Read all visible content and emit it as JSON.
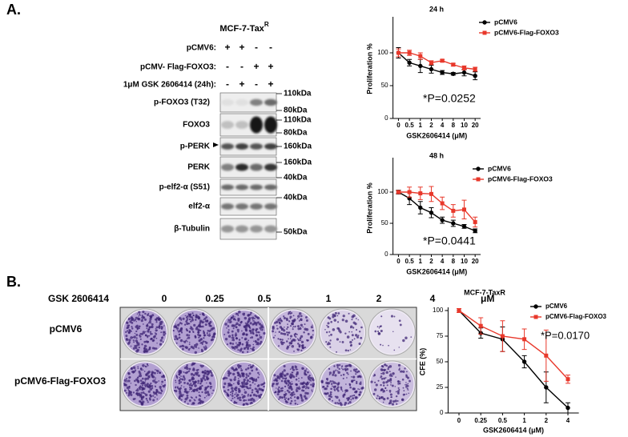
{
  "panel_a": {
    "label": "A.",
    "cell_line": "MCF-7-Tax",
    "cell_line_sup": "R",
    "treatments": [
      {
        "label": "pCMV6:",
        "marks": [
          "+",
          "+",
          "-",
          "-"
        ]
      },
      {
        "label": "pCMV- Flag-FOXO3:",
        "marks": [
          "-",
          "-",
          "+",
          "+"
        ]
      },
      {
        "label": "1μM GSK 2606414 (24h):",
        "marks": [
          "-",
          "+",
          "-",
          "+"
        ]
      }
    ],
    "blots": [
      "p-FOXO3 (T32)",
      "FOXO3",
      "p-PERK",
      "PERK",
      "p-elf2-α (S51)",
      "elf2-α",
      "β-Tubulin"
    ],
    "markers": [
      "110kDa",
      "80kDa",
      "110kDa",
      "80kDa",
      "160kDa",
      "160kDa",
      "40kDa",
      "40kDa",
      "50kDa"
    ]
  },
  "panel_b": {
    "label": "B.",
    "drug": "GSK 2606414",
    "doses": [
      "0",
      "0.25",
      "0.5",
      "1",
      "2",
      "4"
    ],
    "unit": "μM",
    "rows": [
      "pCMV6",
      "pCMV6-Flag-FOXO3"
    ]
  },
  "chart_data": [
    {
      "type": "line",
      "title": "24 h",
      "xlabel": "GSK2606414 (μM)",
      "ylabel": "Proliferation %",
      "annotation": "*P=0.0252",
      "categories": [
        "0",
        "0.5",
        "1",
        "2",
        "4",
        "8",
        "10",
        "20"
      ],
      "series": [
        {
          "name": "pCMV6",
          "color": "#000000",
          "marker": "circle",
          "values": [
            100,
            85,
            80,
            75,
            70,
            68,
            70,
            65
          ],
          "errors": [
            8,
            5,
            10,
            6,
            3,
            2,
            5,
            6
          ]
        },
        {
          "name": "pCMV6-Flag-FOXO3",
          "color": "#e8382b",
          "marker": "square",
          "values": [
            100,
            100,
            95,
            85,
            88,
            82,
            77,
            75
          ],
          "errors": [
            6,
            4,
            5,
            3,
            2,
            2,
            3,
            3
          ]
        }
      ],
      "ylim": [
        0,
        150
      ],
      "yticks": [
        0,
        50,
        100
      ],
      "legend": "upper right"
    },
    {
      "type": "line",
      "title": "48 h",
      "xlabel": "GSK2606414 (μM)",
      "ylabel": "Proliferation %",
      "annotation": "*P=0.0441",
      "categories": [
        "0",
        "0.5",
        "1",
        "2",
        "4",
        "8",
        "10",
        "20"
      ],
      "series": [
        {
          "name": "pCMV6",
          "color": "#000000",
          "marker": "circle",
          "values": [
            100,
            90,
            75,
            67,
            55,
            50,
            45,
            38
          ],
          "errors": [
            3,
            10,
            10,
            8,
            5,
            5,
            3,
            3
          ]
        },
        {
          "name": "pCMV6-Flag-FOXO3",
          "color": "#e8382b",
          "marker": "square",
          "values": [
            100,
            100,
            98,
            97,
            82,
            70,
            72,
            52
          ],
          "errors": [
            2,
            8,
            10,
            12,
            10,
            10,
            15,
            8
          ]
        }
      ],
      "ylim": [
        0,
        150
      ],
      "yticks": [
        0,
        50,
        100
      ],
      "legend": "upper right"
    },
    {
      "type": "line",
      "title": "MCF-7-TaxR",
      "xlabel": "GSK2606414 (μM)",
      "ylabel": "CFE (%)",
      "annotation": "*P=0.0170",
      "categories": [
        "0",
        "0.25",
        "0.5",
        "1",
        "2",
        "4"
      ],
      "series": [
        {
          "name": "pCMV6",
          "color": "#000000",
          "marker": "circle",
          "values": [
            100,
            78,
            72,
            50,
            25,
            5
          ],
          "errors": [
            2,
            5,
            12,
            6,
            15,
            5
          ]
        },
        {
          "name": "pCMV6-Flag-FOXO3",
          "color": "#e8382b",
          "marker": "square",
          "values": [
            100,
            85,
            75,
            72,
            56,
            33
          ],
          "errors": [
            2,
            8,
            15,
            10,
            25,
            4
          ]
        }
      ],
      "ylim": [
        0,
        100
      ],
      "yticks": [
        0,
        25,
        50,
        75,
        100
      ],
      "legend": "upper right"
    }
  ]
}
